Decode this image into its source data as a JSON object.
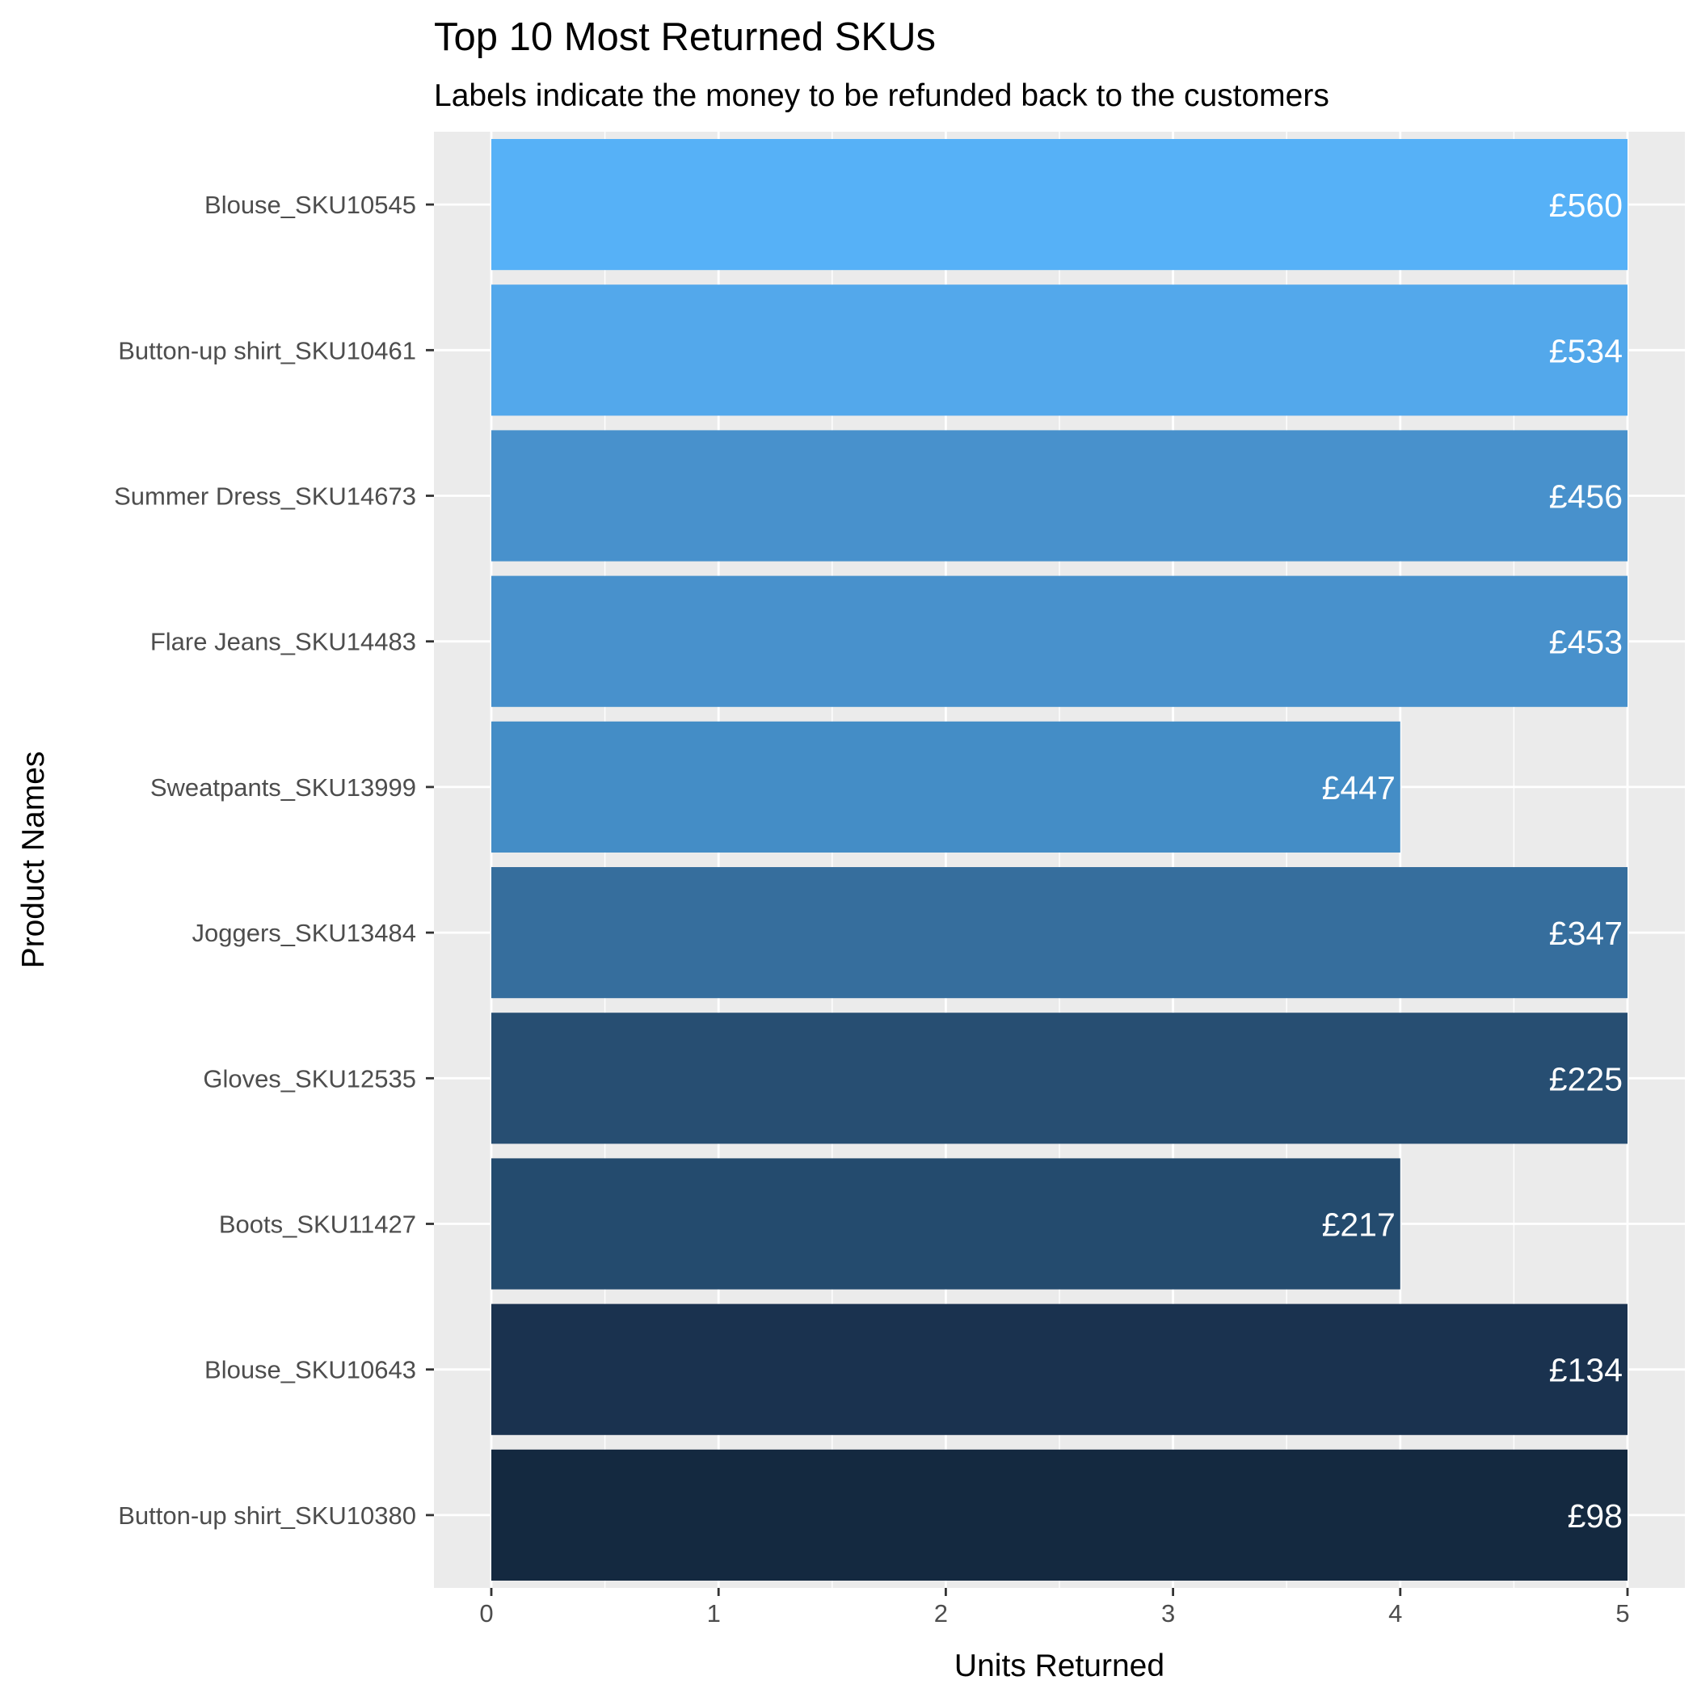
{
  "chart_data": {
    "type": "bar",
    "orientation": "horizontal",
    "title": "Top 10 Most Returned SKUs",
    "subtitle": "Labels indicate the money to be refunded back to the customers",
    "xlabel": "Units Returned",
    "ylabel": "Product Names",
    "xlim": [
      0,
      5
    ],
    "x_ticks": [
      "0",
      "1",
      "2",
      "3",
      "4",
      "5"
    ],
    "grid": true,
    "legend": "none",
    "categories": [
      "Blouse_SKU10545",
      "Button-up shirt_SKU10461",
      "Summer Dress_SKU14673",
      "Flare Jeans_SKU14483",
      "Sweatpants_SKU13999",
      "Joggers_SKU13484",
      "Gloves_SKU12535",
      "Boots_SKU11427",
      "Blouse_SKU10643",
      "Button-up shirt_SKU10380"
    ],
    "values": [
      5,
      5,
      5,
      5,
      4,
      5,
      5,
      4,
      5,
      5
    ],
    "labels": [
      "£560",
      "£534",
      "£456",
      "£453",
      "£447",
      "£347",
      "£225",
      "£217",
      "£134",
      "£98"
    ],
    "colors": [
      "#56B1F7",
      "#53A8EB",
      "#4891CC",
      "#4891CC",
      "#448DC6",
      "#366E9D",
      "#274E72",
      "#244B6E",
      "#1A324F",
      "#142940"
    ]
  },
  "colors": {
    "panel_background": "#EBEBEB",
    "grid_line": "#FFFFFF",
    "tick_text": "#4D4D4D",
    "axis_tick": "#333333"
  }
}
